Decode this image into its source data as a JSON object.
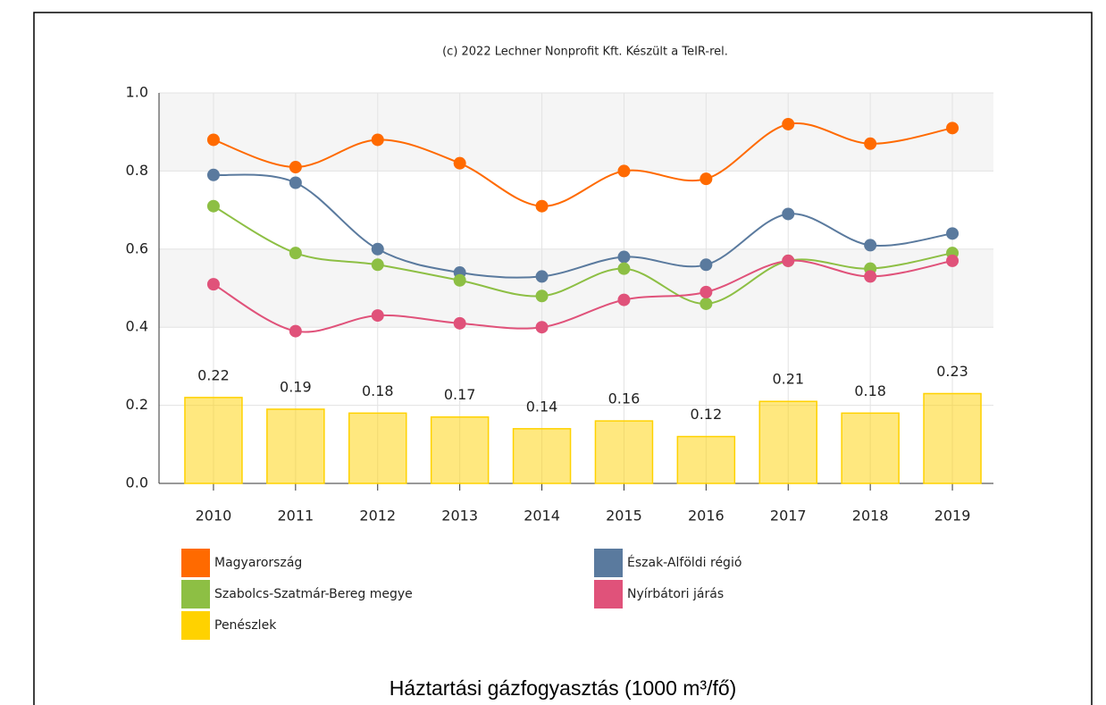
{
  "chart_data": {
    "type": "combo",
    "credit": "(c) 2022 Lechner Nonprofit Kft. Készült a TeIR-rel.",
    "title": "Háztartási gázfogyasztás (1000 m³/fő)",
    "categories": [
      "2010",
      "2011",
      "2012",
      "2013",
      "2014",
      "2015",
      "2016",
      "2017",
      "2018",
      "2019"
    ],
    "ylim": [
      0,
      1.0
    ],
    "yticks": [
      {
        "value": 0,
        "label": "0.0"
      },
      0.2,
      0.4,
      0.6,
      0.8,
      {
        "value": 1.0,
        "label": "1.0"
      }
    ],
    "grid": true,
    "series": [
      {
        "name": "Magyarország",
        "type": "line",
        "color": "#ff6a00",
        "values": [
          0.88,
          0.81,
          0.88,
          0.82,
          0.71,
          0.8,
          0.78,
          0.92,
          0.87,
          0.91
        ]
      },
      {
        "name": "Észak-Alföldi régió",
        "type": "line",
        "color": "#5a7a9e",
        "values": [
          0.79,
          0.77,
          0.6,
          0.54,
          0.53,
          0.58,
          0.56,
          0.69,
          0.61,
          0.64
        ]
      },
      {
        "name": "Szabolcs-Szatmár-Bereg megye",
        "type": "line",
        "color": "#8dbf44",
        "values": [
          0.71,
          0.59,
          0.56,
          0.52,
          0.48,
          0.55,
          0.46,
          0.57,
          0.55,
          0.59
        ]
      },
      {
        "name": "Nyírbátori járás",
        "type": "line",
        "color": "#e0527a",
        "values": [
          0.51,
          0.39,
          0.43,
          0.41,
          0.4,
          0.47,
          0.49,
          0.57,
          0.53,
          0.57
        ]
      },
      {
        "name": "Penészlek",
        "type": "bar",
        "color": "#ffd200",
        "values": [
          0.22,
          0.19,
          0.18,
          0.17,
          0.14,
          0.16,
          0.12,
          0.21,
          0.18,
          0.23
        ]
      }
    ]
  }
}
